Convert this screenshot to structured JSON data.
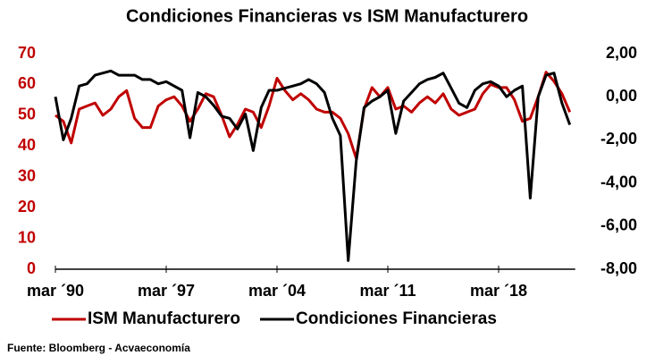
{
  "chart_data": {
    "type": "line",
    "title": "Condiciones Financieras vs ISM Manufacturero",
    "source": "Fuente: Bloomberg - Acvaeconomía",
    "categories": [
      "mar ´90",
      null,
      null,
      null,
      null,
      null,
      null,
      null,
      null,
      null,
      null,
      null,
      null,
      null,
      "mar ´97",
      null,
      null,
      null,
      null,
      null,
      null,
      null,
      null,
      null,
      null,
      null,
      null,
      null,
      "mar ´04",
      null,
      null,
      null,
      null,
      null,
      null,
      null,
      null,
      null,
      null,
      null,
      null,
      null,
      "mar ´11",
      null,
      null,
      null,
      null,
      null,
      null,
      null,
      null,
      null,
      null,
      null,
      null,
      null,
      "mar ´18",
      null,
      null,
      null,
      null,
      null,
      null,
      null,
      null,
      null
    ],
    "series": [
      {
        "name": "ISM Manufacturero",
        "color": "#c00000",
        "axis": "y",
        "values": [
          50,
          48,
          41,
          52,
          53,
          54,
          50,
          52,
          56,
          58,
          49,
          46,
          46,
          53,
          55,
          56,
          53,
          48,
          52,
          57,
          56,
          50,
          43,
          47,
          52,
          51,
          46,
          53,
          62,
          58,
          55,
          57,
          55,
          52,
          51,
          51,
          49,
          44,
          36,
          52,
          59,
          56,
          59,
          52,
          53,
          51,
          54,
          56,
          54,
          57,
          52,
          50,
          51,
          52,
          57,
          60,
          59,
          59,
          55,
          48,
          49,
          56,
          64,
          61,
          57,
          51
        ]
      },
      {
        "name": "Condiciones Financieras",
        "color": "#000000",
        "axis": "y2",
        "values": [
          0.0,
          -2.0,
          -1.0,
          0.5,
          0.6,
          1.0,
          1.1,
          1.2,
          1.0,
          1.0,
          1.0,
          0.8,
          0.8,
          0.6,
          0.7,
          0.5,
          0.3,
          -1.9,
          0.2,
          0.0,
          -0.4,
          -0.9,
          -1.0,
          -1.5,
          -0.8,
          -2.5,
          -0.5,
          0.3,
          0.3,
          0.4,
          0.5,
          0.6,
          0.8,
          0.6,
          0.2,
          -1.0,
          -1.8,
          -7.6,
          -3.0,
          -0.5,
          -0.2,
          0.0,
          0.3,
          -1.7,
          -0.2,
          0.2,
          0.6,
          0.8,
          0.9,
          1.1,
          0.4,
          -0.3,
          -0.5,
          0.3,
          0.6,
          0.7,
          0.5,
          0.0,
          0.3,
          0.5,
          -4.7,
          0.0,
          1.0,
          1.1,
          -0.3,
          -1.3
        ]
      }
    ],
    "ylim": [
      0,
      70
    ],
    "yticks": [
      0,
      10,
      20,
      30,
      40,
      50,
      60,
      70
    ],
    "y2lim": [
      -8,
      2
    ],
    "y2ticks": [
      {
        "value": -8,
        "label": "-8,00"
      },
      {
        "value": -6,
        "label": "-6,00"
      },
      {
        "value": -4,
        "label": "-4,00"
      },
      {
        "value": -2,
        "label": "-2,00"
      },
      {
        "value": 0,
        "label": "0,00"
      },
      {
        "value": 2,
        "label": "2,00"
      }
    ],
    "y_color": "#c00000",
    "y2_color": "#000000",
    "grid": false
  }
}
